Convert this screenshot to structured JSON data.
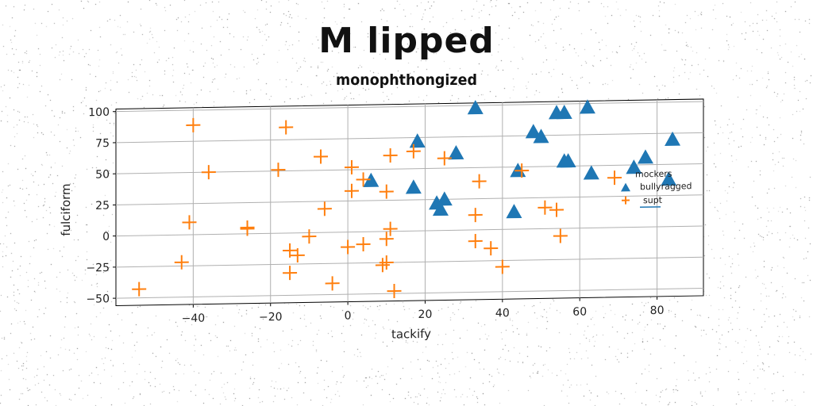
{
  "chart_data": {
    "type": "scatter",
    "title": "M lipped",
    "subtitle": "monophthongized",
    "xlabel": "tackify",
    "ylabel": "fulciform",
    "xlim": [
      -60,
      92
    ],
    "ylim": [
      -56,
      102
    ],
    "x_ticks": [
      -40,
      -20,
      0,
      20,
      40,
      60,
      80
    ],
    "y_ticks": [
      -50,
      -25,
      0,
      25,
      50,
      75,
      100
    ],
    "grid": true,
    "legend": {
      "title": "mockers",
      "placement": "right"
    },
    "series": [
      {
        "name": "bullyragged",
        "marker": "triangle",
        "color": "#1f77b4",
        "points": [
          [
            33,
            98
          ],
          [
            54,
            93
          ],
          [
            56,
            93
          ],
          [
            62,
            97
          ],
          [
            48,
            78
          ],
          [
            50,
            74
          ],
          [
            18,
            72
          ],
          [
            28,
            62
          ],
          [
            84,
            70
          ],
          [
            77,
            56
          ],
          [
            56,
            54
          ],
          [
            57,
            54
          ],
          [
            44,
            47
          ],
          [
            63,
            44
          ],
          [
            74,
            48
          ],
          [
            83,
            38
          ],
          [
            6,
            41
          ],
          [
            17,
            35
          ],
          [
            23,
            22
          ],
          [
            25,
            25
          ],
          [
            24,
            17
          ],
          [
            43,
            14
          ]
        ]
      },
      {
        "name": "supt",
        "marker": "plus",
        "color": "#ff7f0e",
        "points": [
          [
            -40,
            88
          ],
          [
            -16,
            85
          ],
          [
            -36,
            50
          ],
          [
            -18,
            51
          ],
          [
            -7,
            61
          ],
          [
            1,
            52
          ],
          [
            11,
            61
          ],
          [
            17,
            64
          ],
          [
            25,
            58
          ],
          [
            4,
            42
          ],
          [
            1,
            33
          ],
          [
            10,
            32
          ],
          [
            -6,
            19
          ],
          [
            -41,
            10
          ],
          [
            -26,
            5
          ],
          [
            -26,
            4
          ],
          [
            -10,
            -3
          ],
          [
            11,
            2
          ],
          [
            10,
            -6
          ],
          [
            -15,
            -14
          ],
          [
            -13,
            -18
          ],
          [
            4,
            -10
          ],
          [
            0,
            -12
          ],
          [
            -43,
            -22
          ],
          [
            -15,
            -32
          ],
          [
            9,
            -27
          ],
          [
            10,
            -25
          ],
          [
            -4,
            -41
          ],
          [
            12,
            -48
          ],
          [
            -54,
            -43
          ],
          [
            33,
            12
          ],
          [
            34,
            39
          ],
          [
            45,
            47
          ],
          [
            51,
            17
          ],
          [
            54,
            15
          ],
          [
            55,
            -6
          ],
          [
            33,
            -9
          ],
          [
            37,
            -15
          ],
          [
            40,
            -30
          ],
          [
            69,
            40
          ]
        ]
      }
    ]
  }
}
